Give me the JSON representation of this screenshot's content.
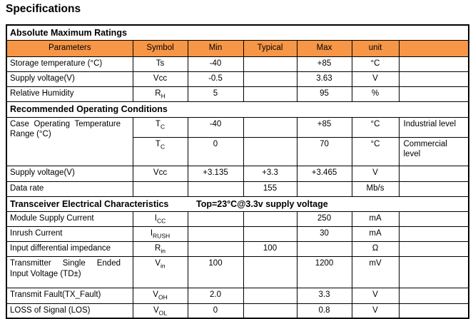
{
  "page_title": "Specifications",
  "colors": {
    "header_bg": "#F79646",
    "border": "#000000",
    "text": "#000000"
  },
  "table": {
    "column_headers": [
      "Parameters",
      "Symbol",
      "Min",
      "Typical",
      "Max",
      "unit",
      ""
    ],
    "sections": [
      {
        "title": "Absolute Maximum Ratings",
        "subtitle": "",
        "show_column_header": true,
        "rows": [
          {
            "param": "Storage temperature (°C)",
            "sym": {
              "base": "Ts",
              "sub": ""
            },
            "min": "-40",
            "typ": "",
            "max": "+85",
            "unit": "°C",
            "note": ""
          },
          {
            "param": "Supply voltage(V)",
            "sym": {
              "base": "Vcc",
              "sub": ""
            },
            "min": "-0.5",
            "typ": "",
            "max": "3.63",
            "unit": "V",
            "note": ""
          },
          {
            "param": "Relative Humidity",
            "sym": {
              "base": "R",
              "sub": "H"
            },
            "min": "5",
            "typ": "",
            "max": "95",
            "unit": "%",
            "note": ""
          }
        ]
      },
      {
        "title": "Recommended Operating Conditions",
        "subtitle": "",
        "show_column_header": false,
        "rows": [
          {
            "param": "Case Operating Temperature Range (°C)",
            "justify": true,
            "rowspan": 2,
            "cls": "h28",
            "sym": {
              "base": "T",
              "sub": "C"
            },
            "min": "-40",
            "typ": "",
            "max": "+85",
            "unit": "°C",
            "note": "Industrial level"
          },
          {
            "param_skip": true,
            "cls": "h40",
            "sym": {
              "base": "T",
              "sub": "C"
            },
            "min": "0",
            "typ": "",
            "max": "70",
            "unit": "°C",
            "note": "Commercial level"
          },
          {
            "param": "Supply voltage(V)",
            "cls": "h22",
            "sym": {
              "base": "Vcc",
              "sub": ""
            },
            "min": "+3.135",
            "typ": "+3.3",
            "max": "+3.465",
            "unit": "V",
            "note": ""
          },
          {
            "param": "Data rate",
            "sym": null,
            "min": "",
            "typ": "155",
            "max": "",
            "unit": "Mb/s",
            "note": ""
          }
        ]
      },
      {
        "title": "Transceiver Electrical Characteristics",
        "subtitle": "Top=23°C@3.3v supply voltage",
        "show_column_header": false,
        "rows": [
          {
            "param": "Module Supply Current",
            "sym": {
              "base": "I",
              "sub": "CC"
            },
            "min": "",
            "typ": "",
            "max": "250",
            "unit": "mA",
            "note": ""
          },
          {
            "param": "Inrush Current",
            "sym": {
              "base": "I",
              "sub": "RUSH"
            },
            "min": "",
            "typ": "",
            "max": "30",
            "unit": "mA",
            "note": ""
          },
          {
            "param": "Input differential impedance",
            "sym": {
              "base": "R",
              "sub": "in"
            },
            "min": "",
            "typ": "100",
            "max": "",
            "unit": "Ω",
            "note": ""
          },
          {
            "param": "Transmitter Single Ended Input Voltage (TD±)",
            "justify": true,
            "cls": "h44",
            "sym": {
              "base": "V",
              "sub": "in"
            },
            "min": "100",
            "typ": "",
            "max": "1200",
            "unit": "mV",
            "note": ""
          },
          {
            "param": "Transmit Fault(TX_Fault)",
            "cls": "h22",
            "sym": {
              "base": "V",
              "sub": "OH"
            },
            "min": "2.0",
            "typ": "",
            "max": "3.3",
            "unit": "V",
            "note": ""
          },
          {
            "param": "LOSS of Signal (LOS)",
            "sym": {
              "base": "V",
              "sub": "OL"
            },
            "min": "0",
            "typ": "",
            "max": "0.8",
            "unit": "V",
            "note": ""
          }
        ]
      }
    ]
  }
}
